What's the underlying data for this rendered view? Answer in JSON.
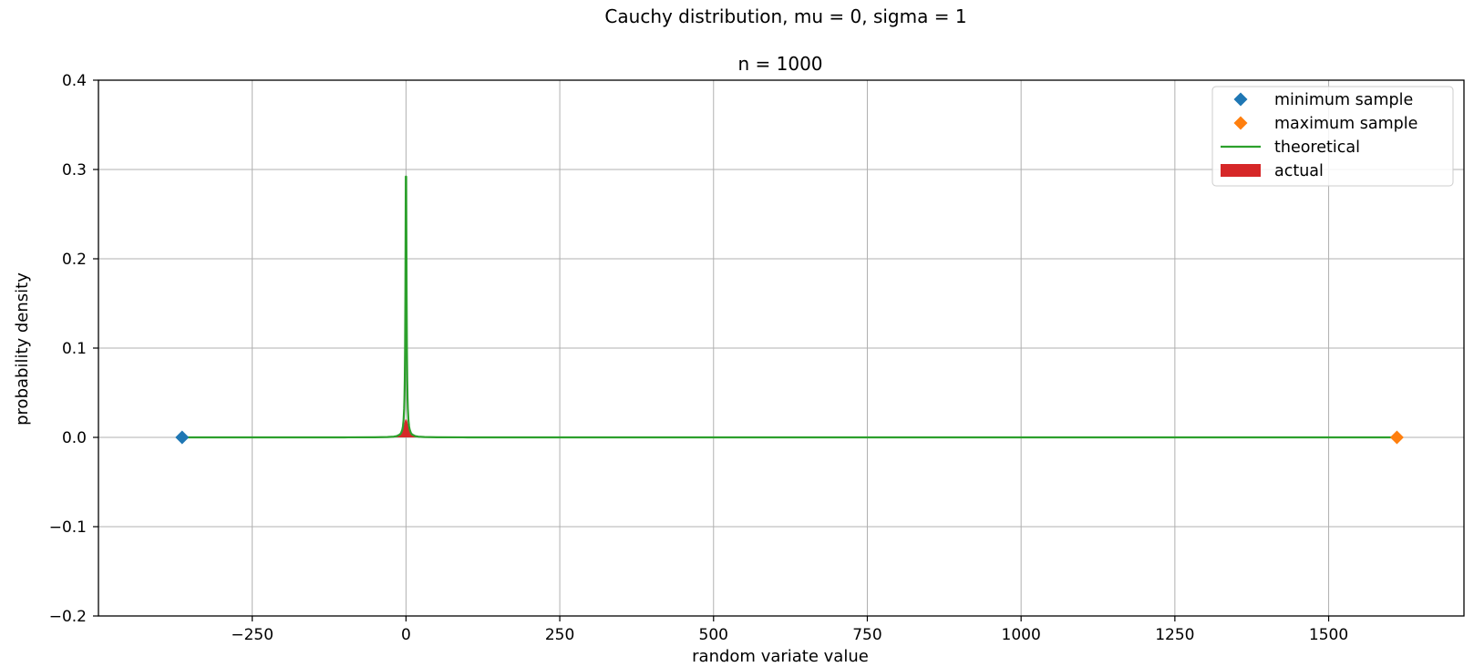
{
  "chart_data": {
    "type": "line",
    "title": "Cauchy distribution, mu = 0, sigma = 1",
    "subtitle": "n = 1000",
    "xlabel": "random variate value",
    "ylabel": "probability density",
    "xlim": [
      -500,
      1720
    ],
    "ylim": [
      -0.2,
      0.4
    ],
    "xticks": [
      -250,
      0,
      250,
      500,
      750,
      1000,
      1250,
      1500
    ],
    "xtick_labels": [
      "−250",
      "0",
      "250",
      "500",
      "750",
      "1000",
      "1250",
      "1500"
    ],
    "yticks": [
      -0.2,
      -0.1,
      0.0,
      0.1,
      0.2,
      0.3,
      0.4
    ],
    "ytick_labels": [
      "−0.2",
      "−0.1",
      "0.0",
      "0.1",
      "0.2",
      "0.3",
      "0.4"
    ],
    "grid": true,
    "legend_position": "top-right",
    "series": [
      {
        "name": "minimum sample",
        "kind": "marker",
        "marker": "diamond",
        "color": "#1f77b4",
        "points": [
          {
            "x": -364,
            "y": 0.0
          }
        ]
      },
      {
        "name": "maximum sample",
        "kind": "marker",
        "marker": "diamond",
        "color": "#ff7f0e",
        "points": [
          {
            "x": 1611,
            "y": 0.0
          }
        ]
      },
      {
        "name": "theoretical",
        "kind": "line",
        "color": "#2ca02c",
        "x": [
          -364,
          -200,
          -100,
          -50,
          -30,
          -20,
          -15,
          -10,
          -8,
          -6,
          -5,
          -4,
          -3,
          -2.5,
          -2,
          -1.5,
          -1,
          -0.6,
          -0.3,
          0,
          0.3,
          0.6,
          1,
          1.5,
          2,
          2.5,
          3,
          4,
          5,
          6,
          8,
          10,
          15,
          20,
          30,
          50,
          100,
          200,
          500,
          1000,
          1611
        ],
        "y": [
          2.4e-06,
          8e-06,
          3.2e-05,
          0.000127,
          0.000353,
          0.000794,
          0.00141,
          0.00315,
          0.0049,
          0.00861,
          0.0122,
          0.0187,
          0.0318,
          0.0439,
          0.0637,
          0.0979,
          0.159,
          0.234,
          0.292,
          0.268,
          0.292,
          0.234,
          0.159,
          0.0979,
          0.0637,
          0.0439,
          0.0318,
          0.0187,
          0.0122,
          0.00861,
          0.0049,
          0.00315,
          0.00141,
          0.000794,
          0.000353,
          0.000127,
          3.2e-05,
          8e-06,
          1.3e-06,
          3e-07,
          1e-07
        ]
      },
      {
        "name": "actual",
        "kind": "area",
        "color": "#d62728",
        "x": [
          -364,
          -30,
          -20,
          -15,
          -10,
          -8,
          -6,
          -4,
          -3,
          -2,
          -1,
          0,
          1,
          2,
          3,
          4,
          6,
          8,
          10,
          15,
          20,
          30,
          1611
        ],
        "y": [
          0.0,
          0.0,
          0.0004,
          0.001,
          0.003,
          0.005,
          0.008,
          0.012,
          0.015,
          0.018,
          0.02,
          0.02,
          0.02,
          0.018,
          0.015,
          0.012,
          0.008,
          0.005,
          0.003,
          0.001,
          0.0004,
          0.0,
          0.0
        ]
      }
    ]
  }
}
